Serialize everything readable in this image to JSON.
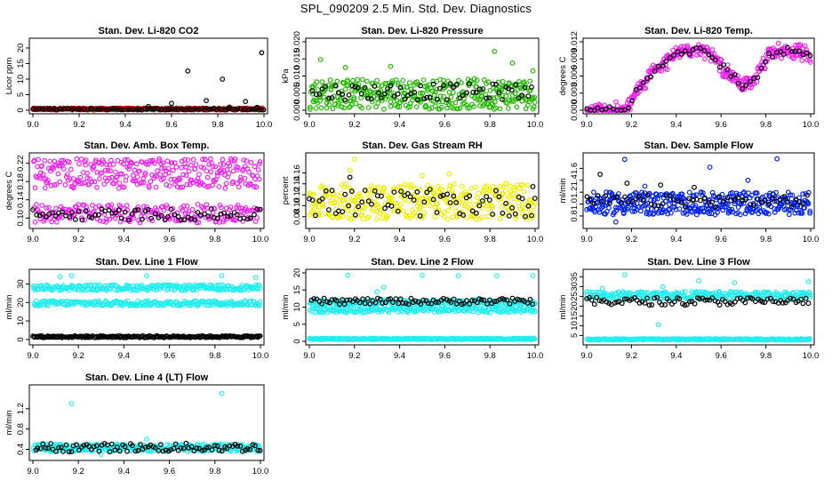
{
  "page": {
    "title": "SPL_090209  2.5 Min. Std. Dev. Diagnostics"
  },
  "colors": {
    "black": "#000000",
    "red": "#dd0000",
    "green": "#22bb00",
    "magenta": "#ee22ee",
    "yellow": "#eeee00",
    "blue": "#0022ee",
    "cyan": "#22eeee"
  },
  "chart_data": [
    {
      "type": "scatter",
      "title": "Stan. Dev. Li-820 CO2",
      "xlabel": "",
      "ylabel": "Licor ppm",
      "xlim": [
        9.0,
        10.0
      ],
      "ylim": [
        0,
        22
      ],
      "xticks": [
        "9.0",
        "9.2",
        "9.4",
        "9.6",
        "9.8",
        "10.0"
      ],
      "yticks": [
        "0",
        "5",
        "10",
        "15",
        "20"
      ],
      "series": [
        {
          "name": "band",
          "color": "red",
          "y_range": [
            0.1,
            0.7
          ],
          "n": 300,
          "x_range": [
            9.0,
            10.0
          ]
        },
        {
          "name": "points",
          "color": "black",
          "y_range": [
            0.1,
            0.6
          ],
          "n": 90,
          "x_range": [
            9.0,
            10.0
          ],
          "extra": [
            [
              9.5,
              1.2
            ],
            [
              9.6,
              2.2
            ],
            [
              9.67,
              12.6
            ],
            [
              9.75,
              3.1
            ],
            [
              9.82,
              10.0
            ],
            [
              9.85,
              1.0
            ],
            [
              9.92,
              2.8
            ],
            [
              9.99,
              18.5
            ],
            [
              9.97,
              0.9
            ]
          ]
        }
      ]
    },
    {
      "type": "scatter",
      "title": "Stan. Dev. Li-820 Pressure",
      "xlabel": "",
      "ylabel": "kPa",
      "xlim": [
        9.0,
        10.0
      ],
      "ylim": [
        0,
        0.02
      ],
      "xticks": [
        "9.0",
        "9.2",
        "9.4",
        "9.6",
        "9.8",
        "10.0"
      ],
      "yticks": [
        "0.000",
        "0.005",
        "0.010",
        "0.015",
        "0.020"
      ],
      "series": [
        {
          "name": "band",
          "color": "green",
          "y_range": [
            0.0003,
            0.0092
          ],
          "n": 360,
          "x_range": [
            9.0,
            10.0
          ],
          "extra": [
            [
              9.05,
              0.0148
            ],
            [
              9.16,
              0.0125
            ],
            [
              9.36,
              0.0128
            ],
            [
              9.5,
              0.0205
            ],
            [
              9.82,
              0.0172
            ],
            [
              9.9,
              0.0138
            ],
            [
              9.99,
              0.0115
            ]
          ]
        },
        {
          "name": "points",
          "color": "black",
          "y_range": [
            0.003,
            0.0078
          ],
          "n": 70,
          "x_range": [
            9.0,
            10.0
          ]
        }
      ]
    },
    {
      "type": "scatter",
      "title": "Stan. Dev. Li-820 Temp.",
      "xlabel": "",
      "ylabel": "degrees C",
      "xlim": [
        9.0,
        10.0
      ],
      "ylim": [
        0,
        0.012
      ],
      "xticks": [
        "9.0",
        "9.2",
        "9.4",
        "9.6",
        "9.8",
        "10.0"
      ],
      "yticks": [
        "0.000",
        "0.003",
        "0.006",
        "0.009",
        "0.012"
      ],
      "series": [
        {
          "name": "temp",
          "color": "magenta",
          "n": 380,
          "x_range": [
            9.0,
            10.0
          ],
          "profile": [
            [
              9.0,
              0.0
            ],
            [
              9.18,
              0.0
            ],
            [
              9.22,
              0.003
            ],
            [
              9.3,
              0.007
            ],
            [
              9.4,
              0.01
            ],
            [
              9.5,
              0.011
            ],
            [
              9.55,
              0.01
            ],
            [
              9.62,
              0.007
            ],
            [
              9.7,
              0.004
            ],
            [
              9.76,
              0.006
            ],
            [
              9.82,
              0.01
            ],
            [
              9.9,
              0.0105
            ],
            [
              10.0,
              0.0095
            ]
          ],
          "spread": 0.0018
        },
        {
          "name": "points",
          "color": "black",
          "n": 60,
          "x_range": [
            9.0,
            10.0
          ],
          "profile": [
            [
              9.0,
              0.0
            ],
            [
              9.18,
              0.0
            ],
            [
              9.22,
              0.003
            ],
            [
              9.3,
              0.007
            ],
            [
              9.4,
              0.01
            ],
            [
              9.5,
              0.011
            ],
            [
              9.55,
              0.01
            ],
            [
              9.62,
              0.007
            ],
            [
              9.7,
              0.004
            ],
            [
              9.76,
              0.006
            ],
            [
              9.82,
              0.01
            ],
            [
              9.9,
              0.0105
            ],
            [
              10.0,
              0.0095
            ]
          ],
          "spread": 0.0012
        }
      ]
    },
    {
      "type": "scatter",
      "title": "Stan. Dev. Amb. Box Temp.",
      "xlabel": "",
      "ylabel": "degrees C",
      "xlim": [
        9.0,
        10.0
      ],
      "ylim": [
        0.085,
        0.235
      ],
      "xticks": [
        "9.0",
        "9.2",
        "9.4",
        "9.6",
        "9.8",
        "10.0"
      ],
      "yticks": [
        "0.10",
        "0.14",
        "0.18",
        "0.22"
      ],
      "series": [
        {
          "name": "upper",
          "color": "magenta",
          "y_range": [
            0.165,
            0.23
          ],
          "n": 300,
          "x_range": [
            9.0,
            10.0
          ]
        },
        {
          "name": "lower",
          "color": "magenta",
          "y_range": [
            0.09,
            0.13
          ],
          "n": 220,
          "x_range": [
            9.0,
            10.0
          ]
        },
        {
          "name": "points",
          "color": "black",
          "y_range": [
            0.095,
            0.12
          ],
          "n": 70,
          "x_range": [
            9.0,
            10.0
          ]
        }
      ]
    },
    {
      "type": "scatter",
      "title": "Stan. Dev. Gas Stream RH",
      "xlabel": "",
      "ylabel": "percent",
      "xlim": [
        9.0,
        10.0
      ],
      "ylim": [
        0.065,
        0.19
      ],
      "xticks": [
        "9.0",
        "9.2",
        "9.4",
        "9.6",
        "9.8",
        "10.0"
      ],
      "yticks": [
        "0.08",
        "0.10",
        "0.12",
        "0.14",
        "0.16"
      ],
      "series": [
        {
          "name": "rh",
          "color": "yellow",
          "y_range": [
            0.075,
            0.14
          ],
          "n": 340,
          "x_range": [
            9.0,
            10.0
          ],
          "extra": [
            [
              9.2,
              0.185
            ],
            [
              9.18,
              0.165
            ],
            [
              9.5,
              0.155
            ],
            [
              9.62,
              0.158
            ]
          ]
        },
        {
          "name": "points",
          "color": "black",
          "y_range": [
            0.08,
            0.13
          ],
          "n": 70,
          "x_range": [
            9.0,
            10.0
          ],
          "extra": [
            [
              9.18,
              0.152
            ],
            [
              9.99,
              0.135
            ]
          ]
        }
      ]
    },
    {
      "type": "scatter",
      "title": "Stan. Dev. Sample Flow",
      "xlabel": "",
      "ylabel": "ml/min",
      "xlim": [
        9.0,
        10.0
      ],
      "ylim": [
        0.65,
        1.8
      ],
      "xticks": [
        "9.0",
        "9.2",
        "9.4",
        "9.6",
        "9.8",
        "10.0"
      ],
      "yticks": [
        "0.8",
        "1.0",
        "1.2",
        "1.4",
        "1.6"
      ],
      "series": [
        {
          "name": "flow",
          "color": "blue",
          "y_range": [
            0.82,
            1.2
          ],
          "n": 380,
          "x_range": [
            9.0,
            10.0
          ],
          "extra": [
            [
              9.17,
              1.75
            ],
            [
              9.26,
              1.3
            ],
            [
              9.55,
              1.62
            ],
            [
              9.72,
              1.4
            ],
            [
              9.85,
              1.76
            ],
            [
              9.13,
              0.7
            ]
          ]
        },
        {
          "name": "points",
          "color": "black",
          "y_range": [
            0.95,
            1.15
          ],
          "n": 60,
          "x_range": [
            9.0,
            10.0
          ],
          "extra": [
            [
              9.06,
              1.5
            ],
            [
              9.18,
              1.35
            ],
            [
              9.33,
              1.32
            ],
            [
              9.48,
              1.28
            ]
          ]
        }
      ]
    },
    {
      "type": "scatter",
      "title": "Stan. Dev. Line 1 Flow",
      "xlabel": "",
      "ylabel": "ml/min",
      "xlim": [
        9.0,
        10.0
      ],
      "ylim": [
        -1,
        36
      ],
      "xticks": [
        "9.0",
        "9.2",
        "9.4",
        "9.6",
        "9.8",
        "10.0"
      ],
      "yticks": [
        "0",
        "10",
        "20",
        "30"
      ],
      "series": [
        {
          "name": "upper",
          "color": "cyan",
          "y_range": [
            26.5,
            29.5
          ],
          "n": 250,
          "x_range": [
            9.0,
            10.0
          ],
          "extra": [
            [
              9.12,
              34
            ],
            [
              9.17,
              34.5
            ],
            [
              9.5,
              34.5
            ],
            [
              9.83,
              34.5
            ],
            [
              9.98,
              33.5
            ]
          ]
        },
        {
          "name": "middle",
          "color": "cyan",
          "y_range": [
            18.2,
            21.0
          ],
          "n": 250,
          "x_range": [
            9.0,
            10.0
          ]
        },
        {
          "name": "bottom",
          "color": "black",
          "y_range": [
            1.0,
            2.0
          ],
          "n": 220,
          "x_range": [
            9.0,
            10.0
          ]
        }
      ]
    },
    {
      "type": "scatter",
      "title": "Stan. Dev. Line 2 Flow",
      "xlabel": "",
      "ylabel": "ml/min",
      "xlim": [
        9.0,
        10.0
      ],
      "ylim": [
        0,
        20
      ],
      "xticks": [
        "9.0",
        "9.2",
        "9.4",
        "9.6",
        "9.8",
        "10.0"
      ],
      "yticks": [
        "0",
        "5",
        "10",
        "15",
        "20"
      ],
      "series": [
        {
          "name": "upper",
          "color": "cyan",
          "y_range": [
            10.2,
            12.2
          ],
          "n": 250,
          "x_range": [
            9.0,
            10.0
          ],
          "extra": [
            [
              9.17,
              19.3
            ],
            [
              9.33,
              15.8
            ],
            [
              9.3,
              14.5
            ],
            [
              9.5,
              19.3
            ],
            [
              9.66,
              19.2
            ],
            [
              9.83,
              19.2
            ],
            [
              9.99,
              19.2
            ]
          ]
        },
        {
          "name": "lower",
          "color": "cyan",
          "y_range": [
            8.4,
            9.8
          ],
          "n": 200,
          "x_range": [
            9.0,
            10.0
          ]
        },
        {
          "name": "bottom",
          "color": "cyan",
          "y_range": [
            0.5,
            0.9
          ],
          "n": 300,
          "x_range": [
            9.0,
            10.0
          ]
        },
        {
          "name": "points",
          "color": "black",
          "y_range": [
            10.8,
            12.6
          ],
          "n": 90,
          "x_range": [
            9.0,
            10.0
          ]
        }
      ]
    },
    {
      "type": "scatter",
      "title": "Stan. Dev. Line 3 Flow",
      "xlabel": "",
      "ylabel": "ml/min",
      "xlim": [
        9.0,
        10.0
      ],
      "ylim": [
        2,
        37
      ],
      "xticks": [
        "9.0",
        "9.2",
        "9.4",
        "9.6",
        "9.8",
        "10.0"
      ],
      "yticks": [
        "5",
        "10",
        "15",
        "20",
        "25",
        "30",
        "35"
      ],
      "series": [
        {
          "name": "upper",
          "color": "cyan",
          "y_range": [
            23.5,
            27.5
          ],
          "n": 280,
          "x_range": [
            9.0,
            10.0
          ],
          "extra": [
            [
              9.07,
              29
            ],
            [
              9.17,
              36
            ],
            [
              9.32,
              10.5
            ],
            [
              9.34,
              30
            ],
            [
              9.5,
              33
            ],
            [
              9.66,
              32
            ],
            [
              9.99,
              32.5
            ]
          ]
        },
        {
          "name": "bottom",
          "color": "cyan",
          "y_range": [
            2.6,
            3.4
          ],
          "n": 300,
          "x_range": [
            9.0,
            10.0
          ]
        },
        {
          "name": "points",
          "color": "black",
          "y_range": [
            20.5,
            24.5
          ],
          "n": 90,
          "x_range": [
            9.0,
            10.0
          ]
        }
      ]
    },
    {
      "type": "scatter",
      "title": "Stan. Dev. Line 4 (LT) Flow",
      "xlabel": "",
      "ylabel": "ml/min",
      "xlim": [
        9.0,
        10.0
      ],
      "ylim": [
        0.25,
        1.6
      ],
      "xticks": [
        "9.0",
        "9.2",
        "9.4",
        "9.6",
        "9.8",
        "10.0"
      ],
      "yticks": [
        "0.4",
        "0.8",
        "1.2"
      ],
      "series": [
        {
          "name": "flow",
          "color": "cyan",
          "y_range": [
            0.36,
            0.5
          ],
          "n": 320,
          "x_range": [
            9.0,
            10.0
          ],
          "extra": [
            [
              9.17,
              1.3
            ],
            [
              9.5,
              0.6
            ],
            [
              9.83,
              1.5
            ],
            [
              9.3,
              0.3
            ]
          ]
        },
        {
          "name": "points",
          "color": "black",
          "y_range": [
            0.35,
            0.52
          ],
          "n": 90,
          "x_range": [
            9.0,
            10.0
          ]
        }
      ]
    }
  ]
}
